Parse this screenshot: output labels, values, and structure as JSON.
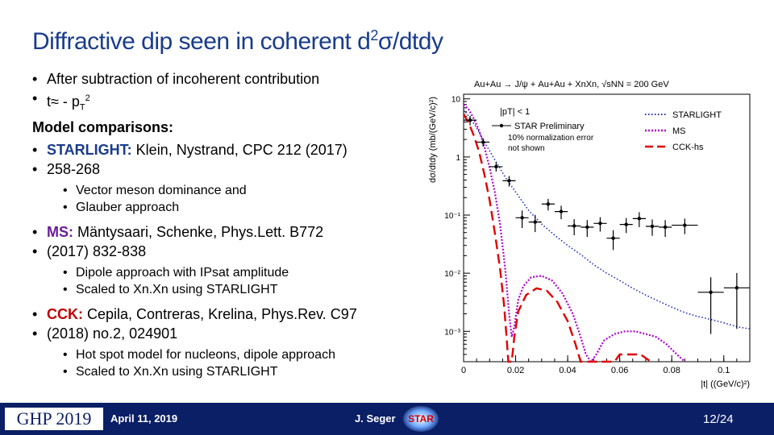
{
  "title_prefix": "Diffractive dip seen in coherent d",
  "title_sup": "2",
  "title_suffix": "σ/dtdy",
  "bullets": {
    "b1": "After subtraction of incoherent contribution",
    "b2_pre": "t≈ - p",
    "b2_sub": "T",
    "b2_sup": "2",
    "model_header": "Model comparisons:",
    "starlight_label": "STARLIGHT:",
    "starlight_ref": "Klein, Nystrand, CPC 212 (2017)",
    "starlight_ref2": "258-268",
    "starlight_sub1": "Vector meson dominance and",
    "starlight_sub2": "Glauber approach",
    "ms_label": "MS:",
    "ms_ref": "Mäntysaari, Schenke, Phys.Lett. B772",
    "ms_ref2": "(2017) 832-838",
    "ms_sub1": "Dipole approach with IPsat amplitude",
    "ms_sub2": "Scaled to Xn.Xn using STARLIGHT",
    "cck_label": "CCK:",
    "cck_ref": "Cepila, Contreras, Krelina, Phys.Rev. C97",
    "cck_ref2": "(2018) no.2, 024901",
    "cck_sub1": "Hot spot model for nucleons, dipole approach",
    "cck_sub2": "Scaled to Xn.Xn using STARLIGHT"
  },
  "footer": {
    "logo": "GHP 2019",
    "date": "April 11, 2019",
    "author": "J. Seger",
    "experiment": "STAR",
    "page": "12/24"
  },
  "chart_data": {
    "type": "line",
    "title": "Au+Au → J/ψ + Au+Au + XnXn, √sNN = 200 GeV",
    "xlabel": "|t| ((GeV/c)²)",
    "ylabel": "dσ/dtdy (mb/(GeV/c)²)",
    "xlim": [
      0,
      0.11
    ],
    "ylim": [
      0.0003,
      12
    ],
    "yscale": "log",
    "x_ticks": [
      "0",
      "0.02",
      "0.04",
      "0.06",
      "0.08",
      "0.1"
    ],
    "y_ticks": [
      {
        "v": 10,
        "label": "10"
      },
      {
        "v": 1,
        "label": "1"
      },
      {
        "v": 0.1,
        "label": "10⁻¹"
      },
      {
        "v": 0.01,
        "label": "10⁻²"
      },
      {
        "v": 0.001,
        "label": "10⁻³"
      }
    ],
    "cut_label": "|pT| < 1",
    "norm_note_1": "10% normalization error",
    "norm_note_2": "not shown",
    "legend_placement": "top-right",
    "colors": {
      "data": "#000000",
      "starlight": "#1f2fbf",
      "ms": "#b000d0",
      "cck": "#e00000"
    },
    "series": [
      {
        "name": "STAR Preliminary",
        "kind": "data",
        "points": [
          {
            "x": 0.0025,
            "y": 4.3,
            "xe": 0.0025,
            "ye": 0.8
          },
          {
            "x": 0.0075,
            "y": 1.8,
            "xe": 0.0025,
            "ye": 0.3
          },
          {
            "x": 0.0125,
            "y": 0.68,
            "xe": 0.0025,
            "ye": 0.12
          },
          {
            "x": 0.0175,
            "y": 0.39,
            "xe": 0.0025,
            "ye": 0.08
          },
          {
            "x": 0.0225,
            "y": 0.09,
            "xe": 0.0025,
            "ye": 0.03
          },
          {
            "x": 0.0275,
            "y": 0.076,
            "xe": 0.0025,
            "ye": 0.025
          },
          {
            "x": 0.0325,
            "y": 0.155,
            "xe": 0.0025,
            "ye": 0.035
          },
          {
            "x": 0.0375,
            "y": 0.115,
            "xe": 0.0025,
            "ye": 0.03
          },
          {
            "x": 0.0425,
            "y": 0.065,
            "xe": 0.0025,
            "ye": 0.02
          },
          {
            "x": 0.0475,
            "y": 0.062,
            "xe": 0.0025,
            "ye": 0.02
          },
          {
            "x": 0.0525,
            "y": 0.072,
            "xe": 0.0025,
            "ye": 0.02
          },
          {
            "x": 0.0575,
            "y": 0.04,
            "xe": 0.0025,
            "ye": 0.015
          },
          {
            "x": 0.0625,
            "y": 0.069,
            "xe": 0.0025,
            "ye": 0.02
          },
          {
            "x": 0.0675,
            "y": 0.087,
            "xe": 0.0025,
            "ye": 0.025
          },
          {
            "x": 0.0725,
            "y": 0.064,
            "xe": 0.0025,
            "ye": 0.02
          },
          {
            "x": 0.0775,
            "y": 0.062,
            "xe": 0.0025,
            "ye": 0.02
          },
          {
            "x": 0.085,
            "y": 0.067,
            "xe": 0.005,
            "ye": 0.02
          },
          {
            "x": 0.095,
            "y": 0.0047,
            "xe": 0.005,
            "ye": 0.0038
          },
          {
            "x": 0.105,
            "y": 0.0056,
            "xe": 0.005,
            "ye": 0.0045
          }
        ]
      },
      {
        "name": "STARLIGHT",
        "kind": "dotted",
        "points": [
          [
            0.0,
            6.5
          ],
          [
            0.002,
            5.0
          ],
          [
            0.005,
            3.2
          ],
          [
            0.008,
            1.8
          ],
          [
            0.012,
            0.9
          ],
          [
            0.016,
            0.45
          ],
          [
            0.02,
            0.25
          ],
          [
            0.025,
            0.12
          ],
          [
            0.03,
            0.07
          ],
          [
            0.035,
            0.045
          ],
          [
            0.04,
            0.03
          ],
          [
            0.045,
            0.021
          ],
          [
            0.05,
            0.014
          ],
          [
            0.055,
            0.01
          ],
          [
            0.06,
            0.0075
          ],
          [
            0.065,
            0.0055
          ],
          [
            0.07,
            0.0042
          ],
          [
            0.075,
            0.0033
          ],
          [
            0.08,
            0.0026
          ],
          [
            0.085,
            0.0021
          ],
          [
            0.09,
            0.0018
          ],
          [
            0.095,
            0.0016
          ],
          [
            0.1,
            0.0014
          ],
          [
            0.105,
            0.0012
          ],
          [
            0.11,
            0.0011
          ]
        ]
      },
      {
        "name": "MS",
        "kind": "dotted",
        "points": [
          [
            0.0,
            8.0
          ],
          [
            0.002,
            6.5
          ],
          [
            0.004,
            4.5
          ],
          [
            0.006,
            2.8
          ],
          [
            0.008,
            1.5
          ],
          [
            0.01,
            0.65
          ],
          [
            0.012,
            0.25
          ],
          [
            0.014,
            0.07
          ],
          [
            0.016,
            0.012
          ],
          [
            0.0175,
            0.002
          ],
          [
            0.0185,
            0.0008
          ],
          [
            0.0195,
            0.0012
          ],
          [
            0.021,
            0.0035
          ],
          [
            0.023,
            0.006
          ],
          [
            0.026,
            0.0085
          ],
          [
            0.03,
            0.009
          ],
          [
            0.034,
            0.0075
          ],
          [
            0.038,
            0.0045
          ],
          [
            0.042,
            0.002
          ],
          [
            0.045,
            0.0008
          ],
          [
            0.047,
            0.0004
          ],
          [
            0.049,
            0.0003
          ],
          [
            0.051,
            0.0004
          ],
          [
            0.054,
            0.0007
          ],
          [
            0.058,
            0.0009
          ],
          [
            0.062,
            0.001
          ],
          [
            0.066,
            0.001
          ],
          [
            0.07,
            0.0009
          ],
          [
            0.074,
            0.0008
          ],
          [
            0.078,
            0.0006
          ],
          [
            0.082,
            0.0004
          ],
          [
            0.085,
            0.0003
          ]
        ]
      },
      {
        "name": "CCK-hs",
        "kind": "dashed",
        "points": [
          [
            0.0,
            5.5
          ],
          [
            0.002,
            3.8
          ],
          [
            0.004,
            2.3
          ],
          [
            0.006,
            1.2
          ],
          [
            0.008,
            0.5
          ],
          [
            0.01,
            0.18
          ],
          [
            0.012,
            0.05
          ],
          [
            0.014,
            0.012
          ],
          [
            0.0155,
            0.003
          ],
          [
            0.0165,
            0.0008
          ],
          [
            0.0172,
            0.0003
          ],
          [
            0.0185,
            0.0003
          ],
          [
            0.0195,
            0.0008
          ],
          [
            0.021,
            0.0022
          ],
          [
            0.024,
            0.0042
          ],
          [
            0.028,
            0.0055
          ],
          [
            0.032,
            0.005
          ],
          [
            0.036,
            0.0032
          ],
          [
            0.04,
            0.0015
          ],
          [
            0.043,
            0.0006
          ],
          [
            0.045,
            0.0003
          ],
          [
            0.058,
            0.0003
          ],
          [
            0.06,
            0.0004
          ],
          [
            0.064,
            0.0004
          ],
          [
            0.068,
            0.0004
          ],
          [
            0.072,
            0.0003
          ]
        ]
      }
    ]
  }
}
